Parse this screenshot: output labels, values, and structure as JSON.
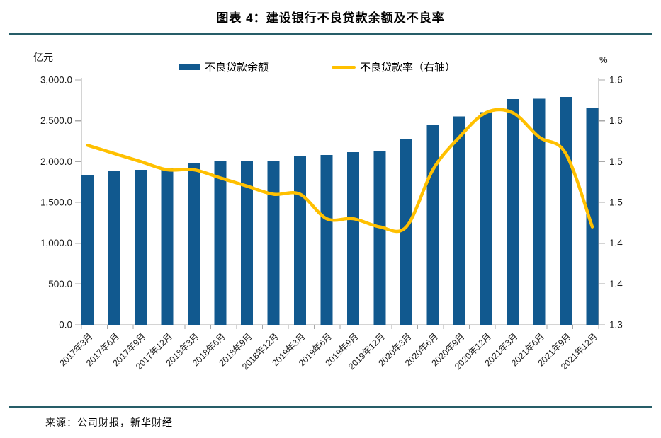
{
  "header": {
    "title": "图表 4：建设银行不良贷款余额及不良率"
  },
  "legend": {
    "balance_label": "不良贷款余额",
    "ratio_label": "不良贷款率（右轴）"
  },
  "axes": {
    "left_unit": "亿元",
    "right_unit": "%",
    "left_tick_labels": [
      "0.0",
      "500.0",
      "1,000.0",
      "1,500.0",
      "2,000.0",
      "2,500.0",
      "3,000.0"
    ],
    "right_tick_labels": [
      "1.3",
      "1.4",
      "1.4",
      "1.5",
      "1.5",
      "1.6",
      "1.6"
    ]
  },
  "footer": {
    "source": "来源：公司财报，新华财经"
  },
  "colors": {
    "bar": "#11598F",
    "line": "#FFC000",
    "rule": "#265D68",
    "axis": "#A8A8A8",
    "text": "#1A1A1A"
  },
  "chart_data": {
    "type": "bar",
    "combo": "bar+line",
    "title": "建设银行不良贷款余额及不良率",
    "categories": [
      "2017年3月",
      "2017年6月",
      "2017年9月",
      "2017年12月",
      "2018年3月",
      "2018年6月",
      "2018年9月",
      "2018年12月",
      "2019年3月",
      "2019年6月",
      "2019年9月",
      "2019年12月",
      "2020年3月",
      "2020年6月",
      "2020年9月",
      "2020年12月",
      "2021年3月",
      "2021年6月",
      "2021年9月",
      "2021年12月"
    ],
    "series": [
      {
        "name": "不良贷款余额",
        "type": "bar",
        "axis": "left",
        "unit": "亿元",
        "values": [
          1837,
          1886,
          1901,
          1923,
          1985,
          2002,
          2012,
          2009,
          2072,
          2081,
          2114,
          2125,
          2272,
          2455,
          2555,
          2607,
          2768,
          2770,
          2793,
          2661
        ]
      },
      {
        "name": "不良贷款率（右轴）",
        "type": "line",
        "axis": "right",
        "unit": "%",
        "values": [
          1.52,
          1.51,
          1.5,
          1.49,
          1.49,
          1.48,
          1.47,
          1.46,
          1.46,
          1.43,
          1.43,
          1.42,
          1.42,
          1.49,
          1.53,
          1.56,
          1.56,
          1.53,
          1.51,
          1.42
        ]
      }
    ],
    "left_ylim": [
      0,
      3000
    ],
    "left_tick_step": 500,
    "right_ylim": [
      1.3,
      1.6
    ],
    "right_tick_step": 0.05,
    "grid": false,
    "legend_position": "top",
    "x_label_rotation": 45
  }
}
